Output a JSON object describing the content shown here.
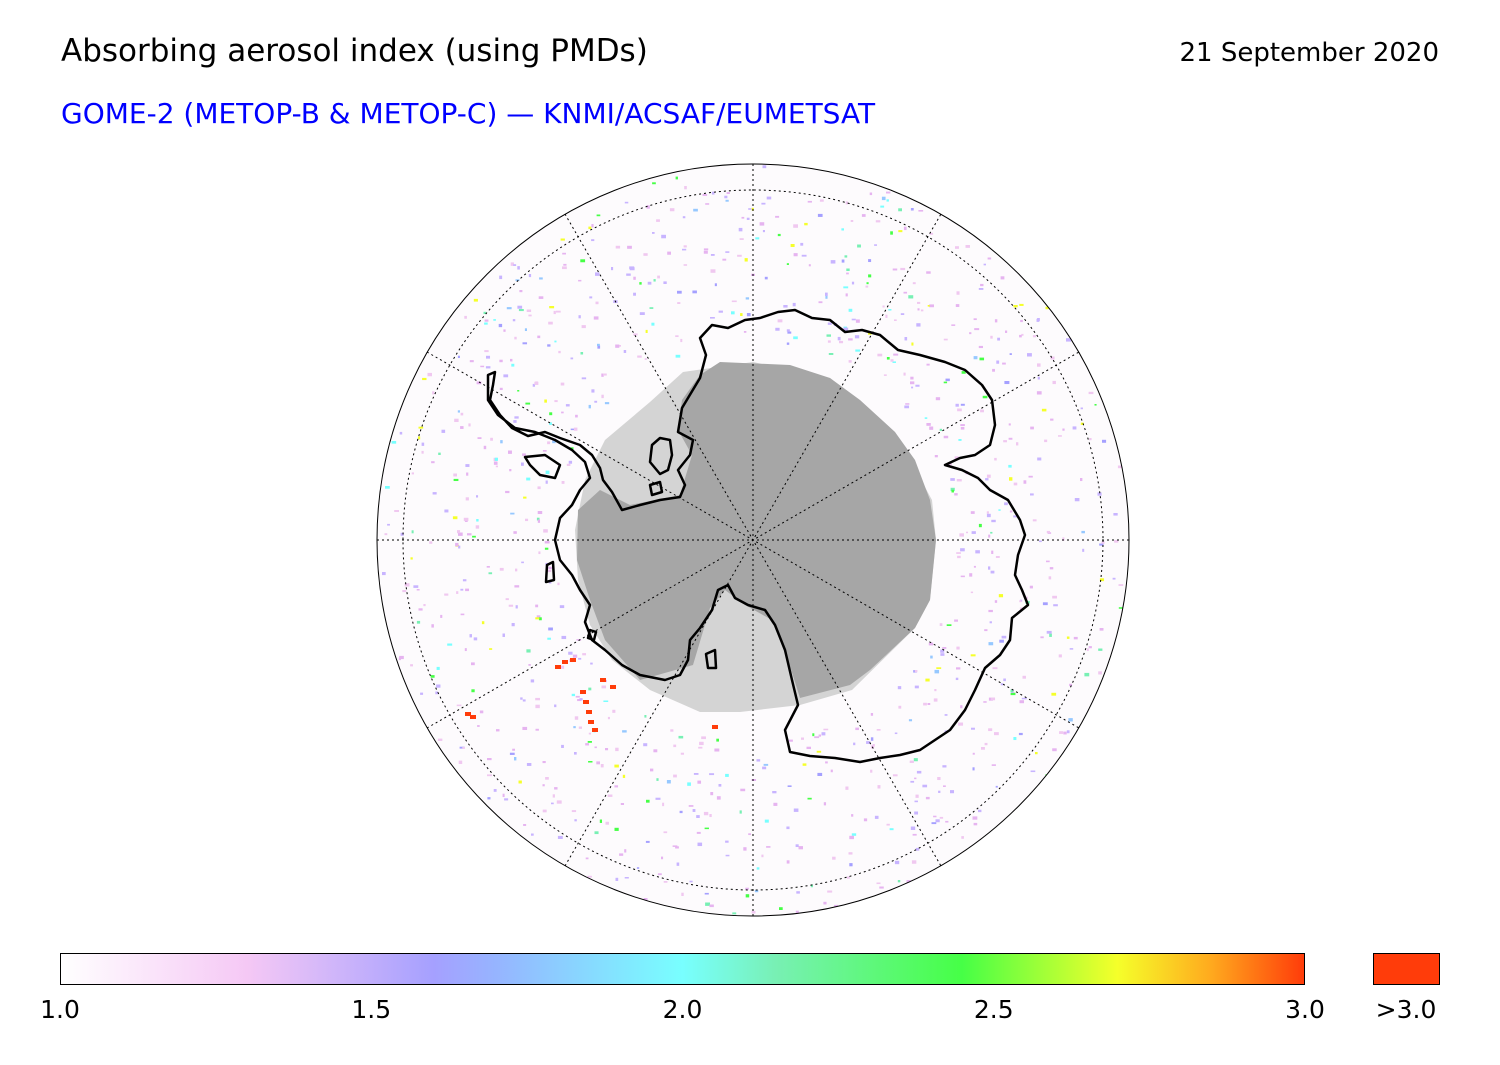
{
  "header": {
    "title": "Absorbing aerosol index (using PMDs)",
    "date": "21 September 2020",
    "subtitle": "GOME-2 (METOP-B & METOP-C) — KNMI/ACSAF/EUMETSAT"
  },
  "map": {
    "projection": "south-polar-stereographic",
    "region": "Antarctica",
    "colors": {
      "ocean_background": "#fdfbfd",
      "polar_night_dark": "#a6a6a6",
      "polar_night_light": "#d4d4d4",
      "coastline": "#000000",
      "graticule": "#000000"
    }
  },
  "colorbar": {
    "min": 1.0,
    "max": 3.0,
    "ticks": [
      "1.0",
      "1.5",
      "2.0",
      "2.5",
      "3.0"
    ],
    "tick_values": [
      1.0,
      1.5,
      2.0,
      2.5,
      3.0
    ],
    "overflow_label": ">3.0",
    "overflow_color": "#ff3c0a",
    "gradient_stops": [
      {
        "value": 1.0,
        "color": "#ffffff"
      },
      {
        "value": 1.3,
        "color": "#f5c8f5"
      },
      {
        "value": 1.6,
        "color": "#a5a0ff"
      },
      {
        "value": 1.7,
        "color": "#96b4ff"
      },
      {
        "value": 2.0,
        "color": "#78ffff"
      },
      {
        "value": 2.15,
        "color": "#78f0b4"
      },
      {
        "value": 2.45,
        "color": "#46ff46"
      },
      {
        "value": 2.7,
        "color": "#f5ff2a"
      },
      {
        "value": 2.85,
        "color": "#ffaa1e"
      },
      {
        "value": 3.0,
        "color": "#ff3c0a"
      }
    ]
  }
}
